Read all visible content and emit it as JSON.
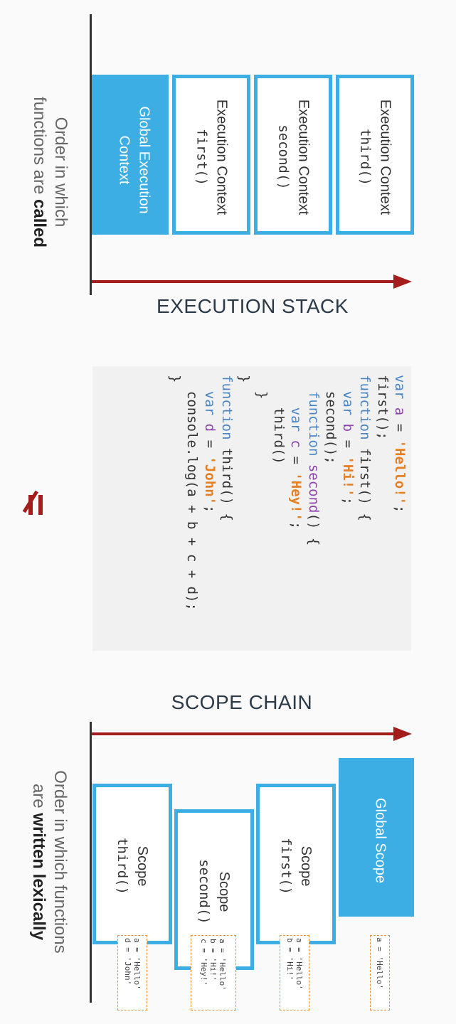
{
  "execution_stack": {
    "title": "EXECUTION STACK",
    "contexts": [
      {
        "label": "Global Execution Context",
        "line1": "Global Execution",
        "line2": "Context"
      },
      {
        "line1": "Execution Context",
        "code": "first()"
      },
      {
        "line1": "Execution Context",
        "code": "second()"
      },
      {
        "line1": "Execution Context",
        "code": "third()"
      }
    ],
    "order_label": {
      "line1": "Order in which",
      "line2_prefix": "functions are ",
      "line2_bold": "called"
    }
  },
  "code": {
    "lines": [
      "var a = 'Hello!';",
      "first();",
      "function first() {",
      "  var b = 'Hi!';",
      "  second();",
      "  function second() {",
      "    var c = 'Hey!';",
      "    third()",
      "  }",
      "}",
      "function third() {",
      "  var d = 'John';",
      "  console.log(a + b + c + d);",
      "}"
    ]
  },
  "not_equal_symbol": "≠",
  "scope_chain": {
    "title": "SCOPE CHAIN",
    "scopes": [
      {
        "line1": "Global Scope",
        "vars": "a = 'Hello'"
      },
      {
        "line1": "Scope",
        "code": "first()",
        "vars": "a = 'Hello'\nb = 'Hi!'"
      },
      {
        "line1": "Scope",
        "code": "second()",
        "vars": "a = 'Hello'\nb = 'Hi!'\nc = 'Hey!'"
      },
      {
        "line1": "Scope",
        "code": "third()",
        "vars": "a = 'Hello'\nd = 'John'"
      }
    ],
    "order_label": {
      "line1": "Order in which functions",
      "line2_prefix": "are ",
      "line2_bold": "written lexically"
    }
  },
  "colors": {
    "blue": "#3caee3",
    "arrow": "#a31d1d",
    "var_border": "#e8913a",
    "keyword": "#4a86c6",
    "variable": "#8e44ad",
    "string": "#e67e22"
  }
}
